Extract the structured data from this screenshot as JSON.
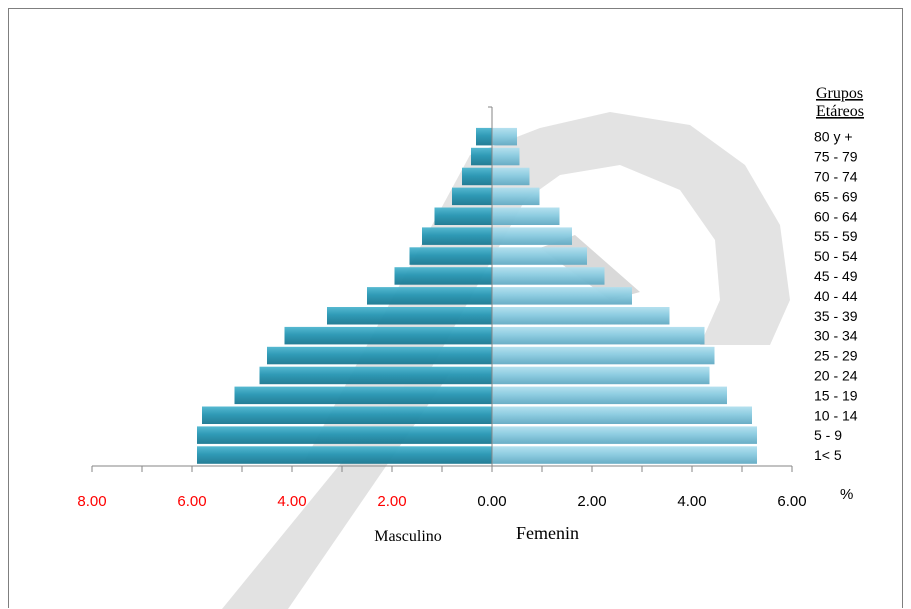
{
  "chart_data": {
    "type": "bar",
    "orientation": "horizontal-population-pyramid",
    "legend_title": [
      "Grupos",
      "Etáreos"
    ],
    "categories": [
      "1<  5",
      "5 - 9",
      "10 - 14",
      "15 - 19",
      "20 - 24",
      "25 - 29",
      "30 - 34",
      "35 - 39",
      "40 - 44",
      "45 - 49",
      "50 - 54",
      "55 - 59",
      "60 - 64",
      "65 - 69",
      "70 - 74",
      "75 - 79",
      "80 y +"
    ],
    "series": [
      {
        "name": "Masculino",
        "side": "left",
        "color": "#2796b3",
        "values": [
          5.9,
          5.9,
          5.8,
          5.15,
          4.65,
          4.5,
          4.15,
          3.3,
          2.5,
          1.95,
          1.65,
          1.4,
          1.15,
          0.8,
          0.6,
          0.42,
          0.32
        ]
      },
      {
        "name": "Femenin",
        "side": "right",
        "color": "#8acbe0",
        "values": [
          5.3,
          5.3,
          5.2,
          4.7,
          4.35,
          4.45,
          4.25,
          3.55,
          2.8,
          2.25,
          1.9,
          1.6,
          1.35,
          0.95,
          0.75,
          0.55,
          0.5
        ]
      }
    ],
    "x_ticks_left": [
      "8.00",
      "6.00",
      "4.00",
      "2.00",
      "0.00"
    ],
    "x_ticks_right": [
      "2.00",
      "4.00",
      "6.00"
    ],
    "x_unit": "%",
    "xlim": [
      -8,
      6
    ],
    "tick_colors": {
      "left": "#ff0000",
      "right": "#000000"
    },
    "grid": false,
    "watermark": "P"
  }
}
